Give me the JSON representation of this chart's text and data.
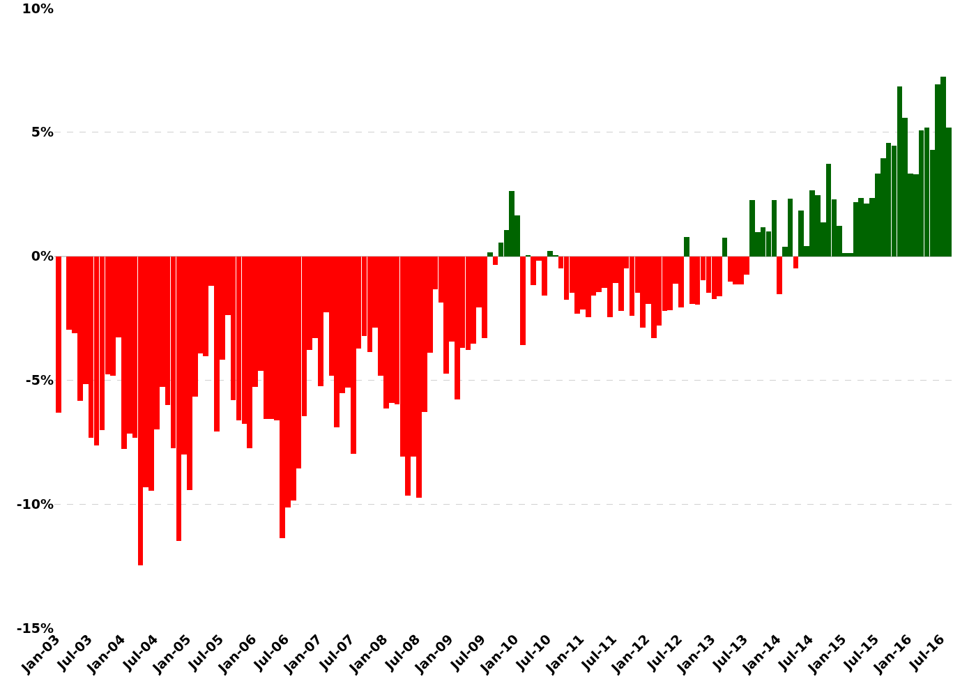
{
  "chart_data": {
    "type": "bar",
    "x": [
      "2003-01",
      "2003-02",
      "2003-03",
      "2003-04",
      "2003-05",
      "2003-06",
      "2003-07",
      "2003-08",
      "2003-09",
      "2003-10",
      "2003-11",
      "2003-12",
      "2004-01",
      "2004-02",
      "2004-03",
      "2004-04",
      "2004-05",
      "2004-06",
      "2004-07",
      "2004-08",
      "2004-09",
      "2004-10",
      "2004-11",
      "2004-12",
      "2005-01",
      "2005-02",
      "2005-03",
      "2005-04",
      "2005-05",
      "2005-06",
      "2005-07",
      "2005-08",
      "2005-09",
      "2005-10",
      "2005-11",
      "2005-12",
      "2006-01",
      "2006-02",
      "2006-03",
      "2006-04",
      "2006-05",
      "2006-06",
      "2006-07",
      "2006-08",
      "2006-09",
      "2006-10",
      "2006-11",
      "2006-12",
      "2007-01",
      "2007-02",
      "2007-03",
      "2007-04",
      "2007-05",
      "2007-06",
      "2007-07",
      "2007-08",
      "2007-09",
      "2007-10",
      "2007-11",
      "2007-12",
      "2008-01",
      "2008-02",
      "2008-03",
      "2008-04",
      "2008-05",
      "2008-06",
      "2008-07",
      "2008-08",
      "2008-09",
      "2008-10",
      "2008-11",
      "2008-12",
      "2009-01",
      "2009-02",
      "2009-03",
      "2009-04",
      "2009-05",
      "2009-06",
      "2009-07",
      "2009-08",
      "2009-09",
      "2009-10",
      "2009-11",
      "2009-12",
      "2010-01",
      "2010-02",
      "2010-03",
      "2010-04",
      "2010-05",
      "2010-06",
      "2010-07",
      "2010-08",
      "2010-09",
      "2010-10",
      "2010-11",
      "2010-12",
      "2011-01",
      "2011-02",
      "2011-03",
      "2011-04",
      "2011-05",
      "2011-06",
      "2011-07",
      "2011-08",
      "2011-09",
      "2011-10",
      "2011-11",
      "2011-12",
      "2012-01",
      "2012-02",
      "2012-03",
      "2012-04",
      "2012-05",
      "2012-06",
      "2012-07",
      "2012-08",
      "2012-09",
      "2012-10",
      "2012-11",
      "2012-12",
      "2013-01",
      "2013-02",
      "2013-03",
      "2013-04",
      "2013-05",
      "2013-06",
      "2013-07",
      "2013-08",
      "2013-09",
      "2013-10",
      "2013-11",
      "2013-12",
      "2014-01",
      "2014-02",
      "2014-03",
      "2014-04",
      "2014-05",
      "2014-06",
      "2014-07",
      "2014-08",
      "2014-09",
      "2014-10",
      "2014-11",
      "2014-12",
      "2015-01",
      "2015-02",
      "2015-03",
      "2015-04",
      "2015-05",
      "2015-06",
      "2015-07",
      "2015-08",
      "2015-09",
      "2015-10",
      "2015-11",
      "2015-12",
      "2016-01",
      "2016-02",
      "2016-03",
      "2016-04",
      "2016-05",
      "2016-06",
      "2016-07",
      "2016-08"
    ],
    "values": [
      -6.31,
      null,
      -2.95,
      -3.11,
      -5.84,
      -5.17,
      -7.32,
      -7.63,
      -7.02,
      -4.75,
      -4.83,
      -3.26,
      -7.78,
      -7.16,
      -7.32,
      -12.47,
      -9.33,
      -9.47,
      -6.99,
      -5.28,
      -6.0,
      -7.75,
      -11.49,
      -8.0,
      -9.43,
      -5.65,
      -3.93,
      -4.04,
      -1.18,
      -7.07,
      -4.16,
      -2.36,
      -5.81,
      -6.63,
      -6.77,
      -7.75,
      -5.28,
      -4.61,
      -6.56,
      -6.56,
      -6.63,
      -11.38,
      -10.14,
      -9.86,
      -8.57,
      -6.46,
      -3.79,
      -3.29,
      -5.25,
      -2.25,
      -4.83,
      -6.91,
      -5.53,
      -5.31,
      -7.98,
      -3.71,
      -3.23,
      -3.87,
      -2.89,
      -4.82,
      -6.14,
      -5.93,
      -5.96,
      -8.08,
      -9.65,
      -8.08,
      -9.74,
      -6.28,
      -3.9,
      -1.32,
      -1.88,
      -4.74,
      -3.43,
      -5.78,
      -3.7,
      -3.78,
      -3.53,
      -2.05,
      -3.31,
      0.17,
      -0.36,
      0.56,
      1.07,
      2.64,
      1.66,
      -3.59,
      0.03,
      -1.17,
      -0.17,
      -1.59,
      0.2,
      0.03,
      -0.5,
      -1.76,
      -1.48,
      -2.32,
      -2.15,
      -2.46,
      -1.59,
      -1.45,
      -1.28,
      -2.46,
      -1.09,
      -2.21,
      -0.5,
      -2.41,
      -1.48,
      -2.88,
      -1.93,
      -3.31,
      -2.8,
      -2.21,
      -2.18,
      -1.11,
      -2.07,
      0.79,
      -1.93,
      -1.96,
      -0.98,
      -1.48,
      -1.73,
      -1.62,
      0.76,
      -1.03,
      -1.14,
      -1.14,
      -0.75,
      2.28,
      0.96,
      1.18,
      1.01,
      2.28,
      -1.53,
      0.37,
      2.33,
      -0.5,
      1.85,
      0.42,
      2.67,
      2.47,
      1.38,
      3.74,
      2.3,
      1.24,
      0.14,
      0.14,
      2.19,
      2.36,
      2.13,
      2.36,
      3.34,
      3.96,
      4.58,
      4.47,
      6.85,
      5.59,
      3.34,
      3.31,
      5.08,
      5.2,
      4.3,
      6.94,
      7.25,
      5.2
    ],
    "colors": [
      "#ff0000",
      "#ff0000",
      "#ff0000",
      "#ff0000",
      "#ff0000",
      "#ff0000",
      "#ff0000",
      "#ff0000",
      "#ff0000",
      "#ff0000",
      "#ff0000",
      "#ff0000",
      "#ff0000",
      "#ff0000",
      "#ff0000",
      "#ff0000",
      "#ff0000",
      "#ff0000",
      "#ff0000",
      "#ff0000",
      "#ff0000",
      "#ff0000",
      "#ff0000",
      "#ff0000",
      "#ff0000",
      "#ff0000",
      "#ff0000",
      "#ff0000",
      "#ff0000",
      "#ff0000",
      "#ff0000",
      "#ff0000",
      "#ff0000",
      "#ff0000",
      "#ff0000",
      "#ff0000",
      "#ff0000",
      "#ff0000",
      "#ff0000",
      "#ff0000",
      "#ff0000",
      "#ff0000",
      "#ff0000",
      "#ff0000",
      "#ff0000",
      "#ff0000",
      "#ff0000",
      "#ff0000",
      "#ff0000",
      "#ff0000",
      "#ff0000",
      "#ff0000",
      "#ff0000",
      "#ff0000",
      "#ff0000",
      "#ff0000",
      "#ff0000",
      "#ff0000",
      "#ff0000",
      "#ff0000",
      "#ff0000",
      "#ff0000",
      "#ff0000",
      "#ff0000",
      "#ff0000",
      "#ff0000",
      "#ff0000",
      "#ff0000",
      "#ff0000",
      "#ff0000",
      "#ff0000",
      "#ff0000",
      "#ff0000",
      "#ff0000",
      "#ff0000",
      "#ff0000",
      "#ff0000",
      "#ff0000",
      "#ff0000",
      "#006400",
      "#ff0000",
      "#006400",
      "#006400",
      "#006400",
      "#006400",
      "#ff0000",
      "#006400",
      "#ff0000",
      "#ff0000",
      "#ff0000",
      "#006400",
      "#006400",
      "#ff0000",
      "#ff0000",
      "#ff0000",
      "#ff0000",
      "#ff0000",
      "#ff0000",
      "#ff0000",
      "#ff0000",
      "#ff0000",
      "#ff0000",
      "#ff0000",
      "#ff0000",
      "#ff0000",
      "#ff0000",
      "#ff0000",
      "#ff0000",
      "#ff0000",
      "#ff0000",
      "#ff0000",
      "#ff0000",
      "#ff0000",
      "#ff0000",
      "#ff0000",
      "#006400",
      "#ff0000",
      "#ff0000",
      "#ff0000",
      "#ff0000",
      "#ff0000",
      "#ff0000",
      "#006400",
      "#ff0000",
      "#ff0000",
      "#ff0000",
      "#ff0000",
      "#006400",
      "#006400",
      "#006400",
      "#006400",
      "#006400",
      "#ff0000",
      "#006400",
      "#006400",
      "#ff0000",
      "#006400",
      "#006400",
      "#006400",
      "#006400",
      "#006400",
      "#006400",
      "#006400",
      "#006400",
      "#006400",
      "#006400",
      "#006400",
      "#006400",
      "#006400",
      "#006400",
      "#006400",
      "#006400",
      "#006400",
      "#006400",
      "#006400",
      "#006400",
      "#006400",
      "#006400",
      "#006400",
      "#006400",
      "#006400",
      "#006400",
      "#006400",
      "#006400"
    ],
    "xlim": [
      "2002-12-24",
      "2016-09-01"
    ],
    "xticks": [
      {
        "value": "2003-01",
        "label": "Jan-03"
      },
      {
        "value": "2003-07",
        "label": "Jul-03"
      },
      {
        "value": "2004-01",
        "label": "Jan-04"
      },
      {
        "value": "2004-07",
        "label": "Jul-04"
      },
      {
        "value": "2005-01",
        "label": "Jan-05"
      },
      {
        "value": "2005-07",
        "label": "Jul-05"
      },
      {
        "value": "2006-01",
        "label": "Jan-06"
      },
      {
        "value": "2006-07",
        "label": "Jul-06"
      },
      {
        "value": "2007-01",
        "label": "Jan-07"
      },
      {
        "value": "2007-07",
        "label": "Jul-07"
      },
      {
        "value": "2008-01",
        "label": "Jan-08"
      },
      {
        "value": "2008-07",
        "label": "Jul-08"
      },
      {
        "value": "2009-01",
        "label": "Jan-09"
      },
      {
        "value": "2009-07",
        "label": "Jul-09"
      },
      {
        "value": "2010-01",
        "label": "Jan-10"
      },
      {
        "value": "2010-07",
        "label": "Jul-10"
      },
      {
        "value": "2011-01",
        "label": "Jan-11"
      },
      {
        "value": "2011-07",
        "label": "Jul-11"
      },
      {
        "value": "2012-01",
        "label": "Jan-12"
      },
      {
        "value": "2012-07",
        "label": "Jul-12"
      },
      {
        "value": "2013-01",
        "label": "Jan-13"
      },
      {
        "value": "2013-07",
        "label": "Jul-13"
      },
      {
        "value": "2014-01",
        "label": "Jan-14"
      },
      {
        "value": "2014-07",
        "label": "Jul-14"
      },
      {
        "value": "2015-01",
        "label": "Jan-15"
      },
      {
        "value": "2015-07",
        "label": "Jul-15"
      },
      {
        "value": "2016-01",
        "label": "Jan-16"
      },
      {
        "value": "2016-07",
        "label": "Jul-16"
      }
    ],
    "ylim": [
      -15,
      10
    ],
    "yticks": [
      {
        "value": -15,
        "label": "-15%"
      },
      {
        "value": -10,
        "label": "-10%"
      },
      {
        "value": -5,
        "label": "-5%"
      },
      {
        "value": 0,
        "label": "0%"
      },
      {
        "value": 5,
        "label": "5%"
      },
      {
        "value": 10,
        "label": "10%"
      }
    ],
    "grid": "y",
    "legend": false
  }
}
